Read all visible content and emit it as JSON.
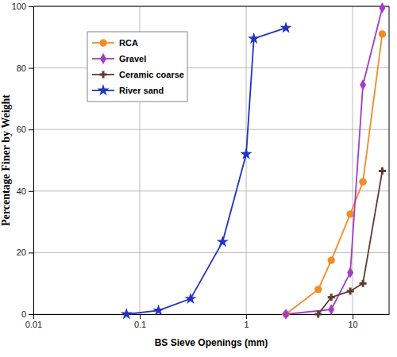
{
  "chart_data": {
    "type": "line",
    "x_label": "BS Sieve Openings (mm)",
    "y_label": "Percentage Finer by Weight",
    "log": "x",
    "grid": true,
    "legend": "upper left",
    "xlim": [
      0.01,
      22
    ],
    "xticks": [
      0.01,
      0.1,
      1,
      10
    ],
    "ylim": [
      0,
      100
    ],
    "yticks": [
      0,
      20,
      40,
      60,
      80,
      100
    ],
    "series": [
      {
        "name": "RCA",
        "color": "#f28c28",
        "marker": "circle",
        "x": [
          2.36,
          4.75,
          6.3,
          9.5,
          12.5,
          19
        ],
        "values": [
          0,
          8,
          17.5,
          32.5,
          43,
          91
        ]
      },
      {
        "name": "Gravel",
        "color": "#a43cc8",
        "marker": "diamond",
        "x": [
          2.36,
          6.3,
          9.5,
          12.5,
          19
        ],
        "values": [
          0,
          1.5,
          13.5,
          74.5,
          99.5
        ]
      },
      {
        "name": "Ceramic coarse",
        "color": "#5e3a2e",
        "marker": "plus",
        "x": [
          4.75,
          6.3,
          9.5,
          12.5,
          19
        ],
        "values": [
          0,
          5.5,
          7.5,
          10,
          46.5
        ]
      },
      {
        "name": "River sand",
        "color": "#2233c4",
        "marker": "star",
        "x": [
          0.075,
          0.15,
          0.3,
          0.6,
          1,
          1.18,
          2.36
        ],
        "values": [
          0,
          1.2,
          5,
          23.5,
          52,
          89.5,
          93
        ]
      }
    ]
  }
}
